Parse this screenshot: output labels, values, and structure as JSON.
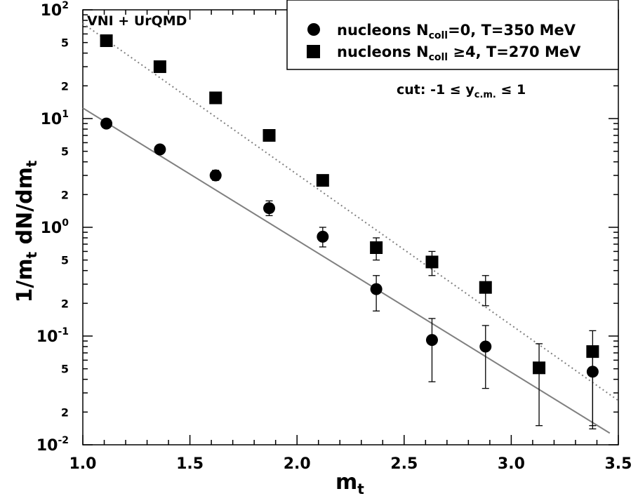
{
  "chart_data": {
    "type": "scatter",
    "title": "",
    "xlabel": "m",
    "xlabel_sub": "t",
    "ylabel": "1/m",
    "ylabel_sub1": "t",
    "ylabel_mid": " dN/dm",
    "ylabel_sub2": "t",
    "xlim": [
      1.0,
      3.5
    ],
    "ylim": [
      0.01,
      100
    ],
    "yscale": "log",
    "grid": false,
    "legend_position": "top-right",
    "x_ticks": [
      "1.0",
      "1.5",
      "2.0",
      "2.5",
      "3.0",
      "3.5"
    ],
    "y_major_ticks": [
      {
        "value": 100,
        "base": "10",
        "exp": "2"
      },
      {
        "value": 10,
        "base": "10",
        "exp": "1"
      },
      {
        "value": 1,
        "base": "10",
        "exp": "0"
      },
      {
        "value": 0.1,
        "base": "10",
        "exp": "-1"
      },
      {
        "value": 0.01,
        "base": "10",
        "exp": "-2"
      }
    ],
    "y_minor_labels": [
      {
        "value": 50,
        "label": "5"
      },
      {
        "value": 20,
        "label": "2"
      },
      {
        "value": 5,
        "label": "5"
      },
      {
        "value": 2,
        "label": "2"
      },
      {
        "value": 0.5,
        "label": "5"
      },
      {
        "value": 0.2,
        "label": "2"
      },
      {
        "value": 0.05,
        "label": "5"
      },
      {
        "value": 0.02,
        "label": "2"
      }
    ],
    "annotations": {
      "model": "VNI + UrQMD",
      "cut_prefix": "cut: -1 ≤ y",
      "cut_sub": "c.m.",
      "cut_suffix": " ≤ 1"
    },
    "series": [
      {
        "name": "nucleons N_coll=0, T=350 MeV",
        "legend_prefix": "nucleons N",
        "legend_sub": "coll",
        "legend_suffix": "=0, T=350 MeV",
        "marker": "circle",
        "color": "#000000",
        "x": [
          1.11,
          1.36,
          1.62,
          1.87,
          2.12,
          2.37,
          2.63,
          2.88,
          3.38
        ],
        "y": [
          9.0,
          5.2,
          3.0,
          1.5,
          0.82,
          0.27,
          0.092,
          0.08,
          0.047
        ],
        "err_low": [
          8.7,
          5.05,
          2.7,
          1.28,
          0.66,
          0.17,
          0.038,
          0.033,
          0.015
        ],
        "err_high": [
          9.3,
          5.4,
          3.35,
          1.75,
          1.0,
          0.36,
          0.145,
          0.125,
          0.075
        ]
      },
      {
        "name": "nucleons N_coll >=4, T=270 MeV",
        "legend_prefix": "nucleons N",
        "legend_sub": "coll",
        "legend_suffix": " ≥4, T=270 MeV",
        "marker": "square",
        "color": "#000000",
        "x": [
          1.11,
          1.36,
          1.62,
          1.87,
          2.12,
          2.37,
          2.63,
          2.88,
          3.13,
          3.38
        ],
        "y": [
          52,
          30,
          15.5,
          7.0,
          2.7,
          0.65,
          0.48,
          0.28,
          0.051,
          0.072
        ],
        "err_low": [
          52,
          30,
          15.5,
          7.0,
          2.7,
          0.5,
          0.36,
          0.19,
          0.015,
          0.014
        ],
        "err_high": [
          52,
          30,
          15.5,
          7.0,
          2.7,
          0.8,
          0.6,
          0.36,
          0.085,
          0.112
        ]
      }
    ],
    "fits": [
      {
        "series": "nucleons N_coll=0, T=350 MeV",
        "style": "solid",
        "color": "#808080",
        "x": [
          1.0,
          3.46
        ],
        "y": [
          12.5,
          0.0128
        ]
      },
      {
        "series": "nucleons N_coll >=4, T=270 MeV",
        "style": "dotted",
        "color": "#808080",
        "x": [
          1.0,
          3.5
        ],
        "y": [
          75,
          0.0255
        ]
      }
    ]
  }
}
